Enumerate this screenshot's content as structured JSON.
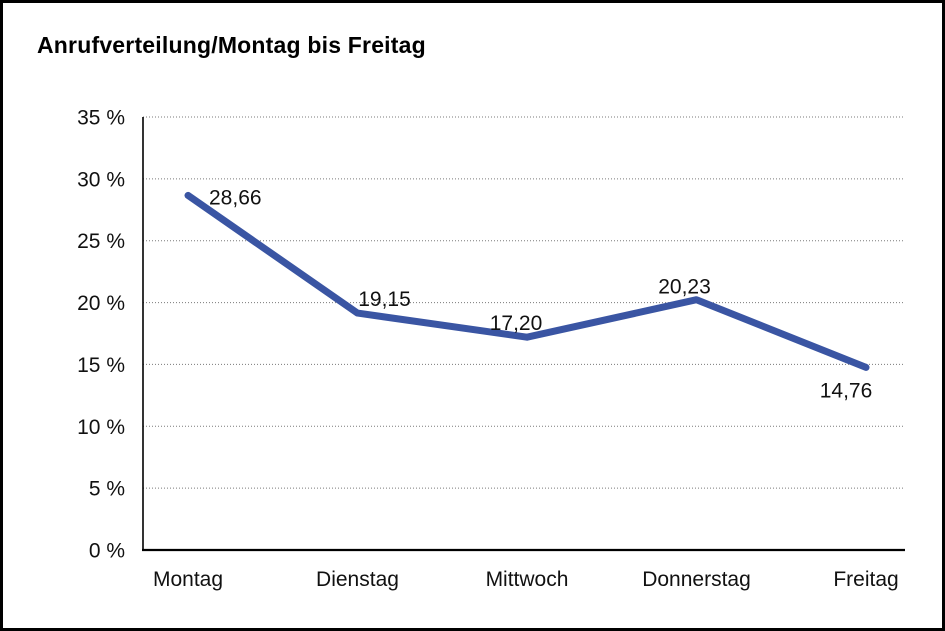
{
  "chart_data": {
    "type": "line",
    "title": "Anrufverteilung/Montag bis Freitag",
    "categories": [
      "Montag",
      "Dienstag",
      "Mittwoch",
      "Donnerstag",
      "Freitag"
    ],
    "values": [
      28.66,
      19.15,
      17.2,
      20.23,
      14.76
    ],
    "value_labels": [
      "28,66",
      "19,15",
      "17,20",
      "20,23",
      "14,76"
    ],
    "xlabel": "",
    "ylabel": "",
    "ylim": [
      0,
      35
    ],
    "ytick_step": 5,
    "ytick_labels": [
      "0 %",
      "5 %",
      "10 %",
      "15 %",
      "20 %",
      "25 %",
      "30 %",
      "35 %"
    ],
    "grid": "horizontal-dotted",
    "legend": "none",
    "line_color": "#3A55A3",
    "axis_color": "#000000",
    "grid_color": "#7a7a7a",
    "text_color": "#111111",
    "frame_color": "#000000"
  }
}
